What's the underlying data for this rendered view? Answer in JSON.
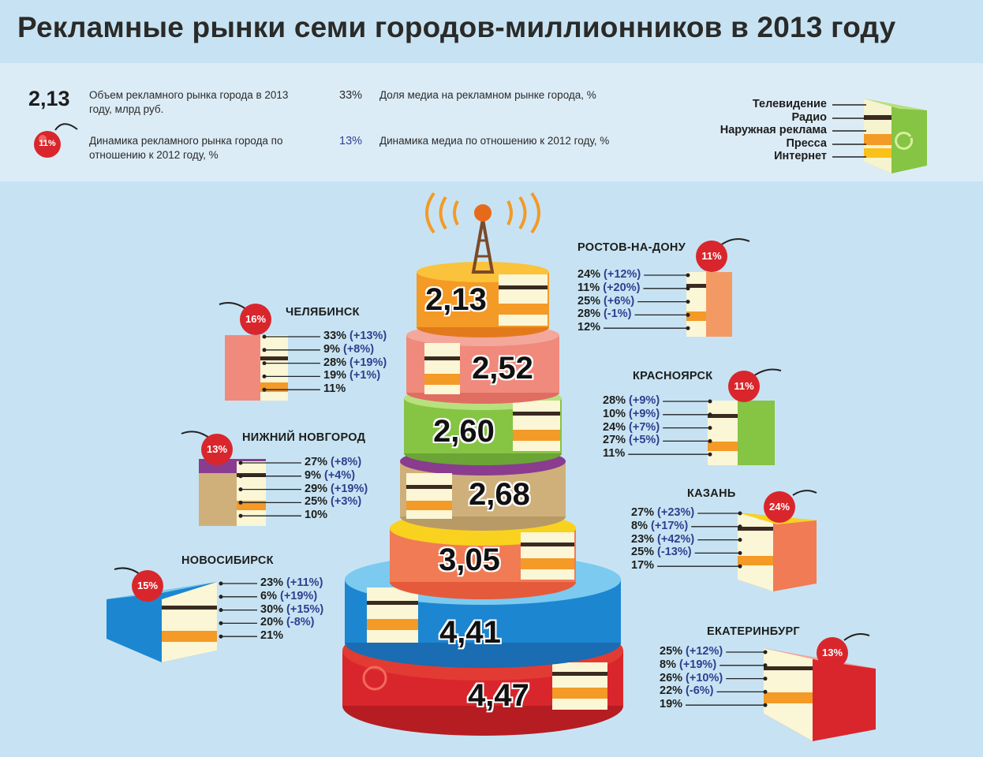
{
  "title": "Рекламные рынки семи городов-миллионников в 2013 году",
  "legend": {
    "volume_example": "2,13",
    "volume_text": "Объем рекламного рынка города в 2013 году, млрд руб.",
    "dynamics_example": "11%",
    "dynamics_text": "Динамика рекламного рынка города по отношению к 2012 году, %",
    "share_example": "33%",
    "share_text": "Доля медиа на рекламном рынке города, %",
    "media_dyn_example": "13%",
    "media_dyn_text": "Динамика медиа по отношению к 2012 году, %",
    "segments": [
      "Телевидение",
      "Радио",
      "Наружная реклама",
      "Пресса",
      "Интернет"
    ]
  },
  "colors": {
    "background": "#c7e3f3",
    "dynamics_text": "#2f3f8f",
    "cherry": "#d9262c"
  },
  "chart_data": {
    "type": "bar",
    "title": "Рекламные рынки семи городов-миллионников в 2013 году",
    "tiers": [
      {
        "value": "2,13",
        "city_ref": "Ростов-на-Дону"
      },
      {
        "value": "2,52",
        "city_ref": "Челябинск"
      },
      {
        "value": "2,60",
        "city_ref": "Красноярск"
      },
      {
        "value": "2,68",
        "city_ref": "Нижний Новгород"
      },
      {
        "value": "3,05",
        "city_ref": "Казань"
      },
      {
        "value": "4,41",
        "city_ref": "Новосибирск"
      },
      {
        "value": "4,47",
        "city_ref": "Екатеринбург"
      }
    ],
    "cities": [
      {
        "name": "РОСТОВ-НА-ДОНУ",
        "growth": "11%",
        "rows": [
          [
            "24%",
            "(+12%)"
          ],
          [
            "11%",
            "(+20%)"
          ],
          [
            "25%",
            "(+6%)"
          ],
          [
            "28%",
            "(-1%)"
          ],
          [
            "12%",
            ""
          ]
        ]
      },
      {
        "name": "ЧЕЛЯБИНСК",
        "growth": "16%",
        "rows": [
          [
            "33%",
            "(+13%)"
          ],
          [
            "9%",
            "(+8%)"
          ],
          [
            "28%",
            "(+19%)"
          ],
          [
            "19%",
            "(+1%)"
          ],
          [
            "11%",
            ""
          ]
        ]
      },
      {
        "name": "КРАСНОЯРСК",
        "growth": "11%",
        "rows": [
          [
            "28%",
            "(+9%)"
          ],
          [
            "10%",
            "(+9%)"
          ],
          [
            "24%",
            "(+7%)"
          ],
          [
            "27%",
            "(+5%)"
          ],
          [
            "11%",
            ""
          ]
        ]
      },
      {
        "name": "НИЖНИЙ НОВГОРОД",
        "growth": "13%",
        "rows": [
          [
            "27%",
            "(+8%)"
          ],
          [
            "9%",
            "(+4%)"
          ],
          [
            "29%",
            "(+19%)"
          ],
          [
            "25%",
            "(+3%)"
          ],
          [
            "10%",
            ""
          ]
        ]
      },
      {
        "name": "КАЗАНЬ",
        "growth": "24%",
        "rows": [
          [
            "27%",
            "(+23%)"
          ],
          [
            "8%",
            "(+17%)"
          ],
          [
            "23%",
            "(+42%)"
          ],
          [
            "25%",
            "(-13%)"
          ],
          [
            "17%",
            ""
          ]
        ]
      },
      {
        "name": "НОВОСИБИРСК",
        "growth": "15%",
        "rows": [
          [
            "23%",
            "(+11%)"
          ],
          [
            "6%",
            "(+19%)"
          ],
          [
            "30%",
            "(+15%)"
          ],
          [
            "20%",
            "(-8%)"
          ],
          [
            "21%",
            ""
          ]
        ]
      },
      {
        "name": "ЕКАТЕРИНБУРГ",
        "growth": "13%",
        "rows": [
          [
            "25%",
            "(+12%)"
          ],
          [
            "8%",
            "(+19%)"
          ],
          [
            "26%",
            "(+10%)"
          ],
          [
            "22%",
            "(-6%)"
          ],
          [
            "19%",
            ""
          ]
        ]
      }
    ]
  }
}
